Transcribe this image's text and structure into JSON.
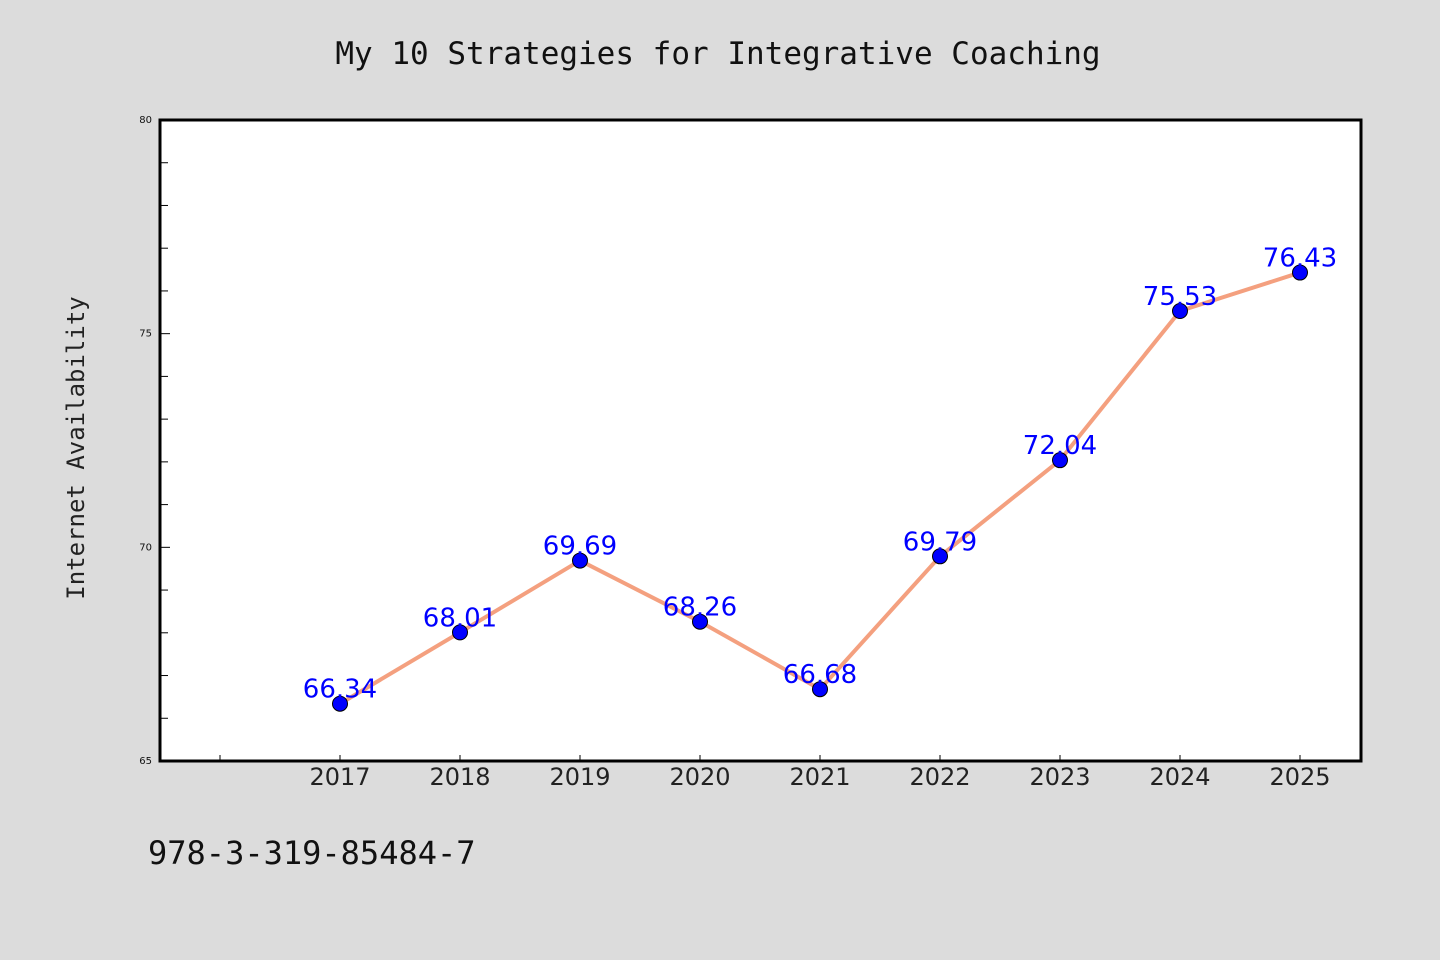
{
  "chart_data": {
    "type": "line",
    "title": "My 10 Strategies for Integrative Coaching",
    "xlabel": "",
    "ylabel": "Internet Availability",
    "categories": [
      "2017",
      "2018",
      "2019",
      "2020",
      "2021",
      "2022",
      "2023",
      "2024",
      "2025"
    ],
    "values": [
      66.34,
      68.01,
      69.69,
      68.26,
      66.68,
      69.79,
      72.04,
      75.53,
      76.43
    ],
    "data_labels": [
      "66.34",
      "68.01",
      "69.69",
      "68.26",
      "66.68",
      "69.79",
      "72.04",
      "75.53",
      "76.43"
    ],
    "ylim": [
      65,
      80
    ],
    "yticks": [
      "65",
      "70",
      "75",
      "80"
    ],
    "grid": false,
    "line_color": "#f4a07f",
    "marker_color": "#0000ff",
    "label_color": "#0000ff"
  },
  "footer": {
    "isbn": "978-3-319-85484-7"
  },
  "colors": {
    "background": "#dcdcdc",
    "plot_background": "#ffffff",
    "axes": "#000000"
  }
}
